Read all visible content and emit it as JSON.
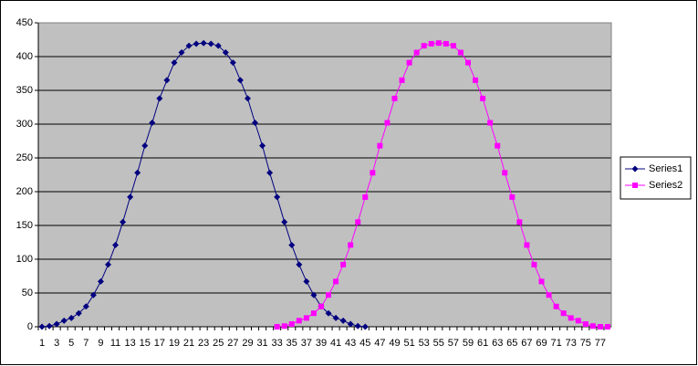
{
  "chart_data": {
    "type": "line",
    "categories": [
      1,
      null,
      3,
      null,
      5,
      null,
      7,
      null,
      9,
      null,
      11,
      null,
      13,
      null,
      15,
      null,
      17,
      null,
      19,
      null,
      21,
      null,
      23,
      null,
      25,
      null,
      27,
      null,
      29,
      null,
      31,
      null,
      33,
      null,
      35,
      null,
      37,
      null,
      39,
      null,
      41,
      null,
      43,
      null,
      45,
      null,
      47,
      null,
      49,
      null,
      51,
      null,
      53,
      null,
      55,
      null,
      57,
      null,
      59,
      null,
      61,
      null,
      63,
      null,
      65,
      null,
      67,
      null,
      69,
      null,
      71,
      null,
      73,
      null,
      75,
      null,
      77,
      null
    ],
    "series": [
      {
        "name": "Series1",
        "color": "#000080",
        "marker": "diamond",
        "values": [
          0,
          1,
          4,
          9,
          13,
          20,
          30,
          47,
          67,
          92,
          121,
          155,
          192,
          228,
          268,
          302,
          338,
          365,
          391,
          406,
          416,
          419,
          420,
          419,
          416,
          406,
          391,
          365,
          338,
          302,
          268,
          228,
          192,
          155,
          121,
          92,
          67,
          47,
          30,
          20,
          13,
          9,
          4,
          1,
          0,
          null,
          null,
          null,
          null,
          null,
          null,
          null,
          null,
          null,
          null,
          null,
          null,
          null,
          null,
          null,
          null,
          null,
          null,
          null,
          null,
          null,
          null,
          null,
          null,
          null,
          null,
          null,
          null,
          null,
          null,
          null,
          null,
          null
        ]
      },
      {
        "name": "Series2",
        "color": "#ff00ff",
        "marker": "square",
        "values": [
          null,
          null,
          null,
          null,
          null,
          null,
          null,
          null,
          null,
          null,
          null,
          null,
          null,
          null,
          null,
          null,
          null,
          null,
          null,
          null,
          null,
          null,
          null,
          null,
          null,
          null,
          null,
          null,
          null,
          null,
          null,
          null,
          0,
          1,
          4,
          9,
          13,
          20,
          30,
          47,
          67,
          92,
          121,
          155,
          192,
          228,
          268,
          302,
          338,
          365,
          391,
          406,
          416,
          419,
          420,
          419,
          416,
          406,
          391,
          365,
          338,
          302,
          268,
          228,
          192,
          155,
          121,
          92,
          67,
          47,
          30,
          20,
          13,
          9,
          4,
          1,
          0,
          0
        ]
      }
    ],
    "ylim": [
      0,
      450
    ],
    "yticks": [
      0,
      50,
      100,
      150,
      200,
      250,
      300,
      350,
      400,
      450
    ],
    "grid": true,
    "plot_background": "#c0c0c0",
    "legend": "right"
  }
}
